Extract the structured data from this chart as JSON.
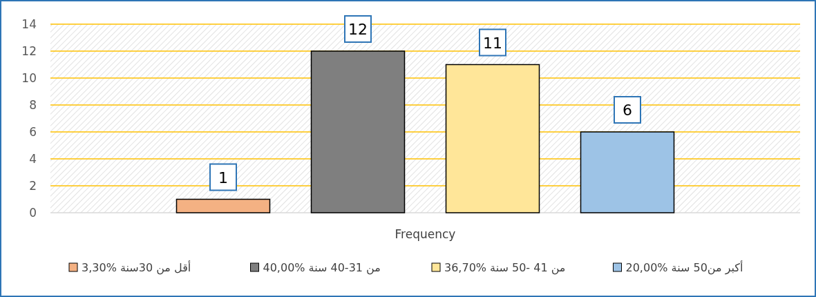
{
  "chart_data": {
    "type": "bar",
    "categories": [
      "Frequency"
    ],
    "series": [
      {
        "name": "أقل من 30سنة %3,30",
        "color": "#f4b183",
        "values": [
          1
        ]
      },
      {
        "name": "من 31-40 سنة %40,00",
        "color": "#7f7f7f",
        "values": [
          12
        ]
      },
      {
        "name": "من 41 -50 سنة %36,70",
        "color": "#ffe699",
        "values": [
          11
        ]
      },
      {
        "name": "أكبر من50 سنة %20,00",
        "color": "#9dc3e6",
        "values": [
          6
        ]
      }
    ],
    "ylim": [
      0,
      14
    ],
    "yticks": [
      0,
      2,
      4,
      6,
      8,
      10,
      12,
      14
    ],
    "grid": "y",
    "legend": "bottom",
    "data_labels": true
  }
}
